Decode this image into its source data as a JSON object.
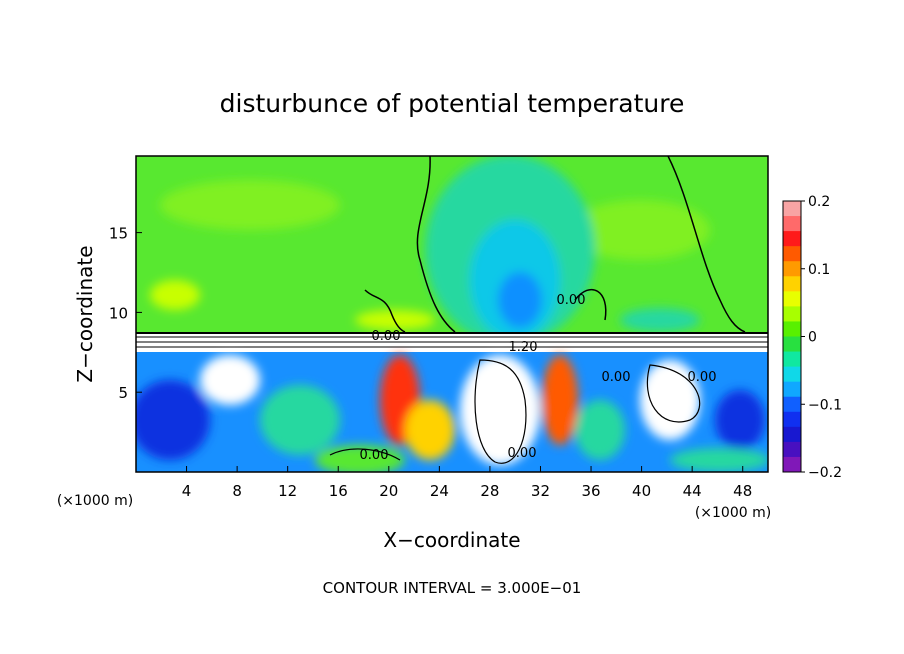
{
  "chart_data": {
    "type": "heatmap",
    "title": "disturbunce of potential temperature",
    "xlabel": "X−coordinate",
    "ylabel": "Z−coordinate",
    "x_unit": "(×1000 m)",
    "y_unit": "(×1000 m)",
    "xlim": [
      0,
      50
    ],
    "ylim": [
      0,
      19.8
    ],
    "x_ticks": [
      4,
      8,
      12,
      16,
      20,
      24,
      28,
      32,
      36,
      40,
      44,
      48
    ],
    "y_ticks": [
      5,
      10,
      15
    ],
    "colorbar": {
      "range": [
        -0.2,
        0.2
      ],
      "ticks": [
        "0.2",
        "0.1",
        "0",
        "−0.1",
        "−0.2"
      ],
      "colors": [
        "#f8a4a4",
        "#ff6a6a",
        "#ff1a1a",
        "#ff5a00",
        "#ff9a00",
        "#ffd200",
        "#e8ff00",
        "#a8ff00",
        "#58f000",
        "#28e040",
        "#10e8a0",
        "#10d8e8",
        "#10a8ff",
        "#1060ff",
        "#1030f0",
        "#1818d0",
        "#4810c0",
        "#8018b8"
      ]
    },
    "contour_labels": [
      "0.00",
      "0.00",
      "1.20",
      "0.00",
      "0.00",
      "0.00",
      "0.00"
    ],
    "footer": "CONTOUR INTERVAL = 3.000E−01"
  }
}
